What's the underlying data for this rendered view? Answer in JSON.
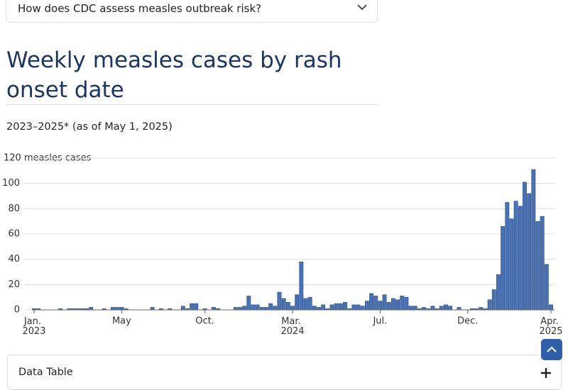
{
  "accordion": {
    "question": "How does CDC assess measles outbreak risk?"
  },
  "chart_data": {
    "type": "bar",
    "title": "Weekly measles cases by rash onset date",
    "subtitle": "2023–2025* (as of May 1, 2025)",
    "categories": [
      "Jan. 2023",
      null,
      null,
      null,
      null,
      null,
      null,
      null,
      null,
      null,
      null,
      null,
      null,
      null,
      null,
      null,
      null,
      null,
      null,
      null,
      "May",
      null,
      null,
      null,
      null,
      null,
      null,
      null,
      null,
      null,
      null,
      null,
      null,
      null,
      null,
      null,
      null,
      null,
      null,
      "Oct.",
      null,
      null,
      null,
      null,
      null,
      null,
      null,
      null,
      null,
      null,
      null,
      null,
      null,
      null,
      null,
      null,
      null,
      null,
      null,
      "Mar. 2024",
      null,
      null,
      null,
      null,
      null,
      null,
      null,
      null,
      null,
      null,
      null,
      null,
      null,
      null,
      null,
      null,
      null,
      null,
      null,
      "Jul.",
      null,
      null,
      null,
      null,
      null,
      null,
      null,
      null,
      null,
      null,
      null,
      null,
      null,
      null,
      null,
      null,
      null,
      null,
      null,
      "Dec.",
      null,
      null,
      null,
      null,
      null,
      null,
      null,
      null,
      null,
      null,
      null,
      null,
      null,
      null,
      null,
      null,
      null,
      null,
      "Apr. 2025"
    ],
    "values": [
      1,
      1,
      0,
      0,
      0,
      0,
      1,
      0,
      1,
      1,
      1,
      1,
      1,
      2,
      0,
      0,
      1,
      0,
      2,
      2,
      2,
      1,
      0,
      0,
      0,
      0,
      0,
      2,
      0,
      1,
      0,
      1,
      0,
      0,
      3,
      1,
      5,
      5,
      0,
      1,
      0,
      2,
      1,
      0,
      0,
      0,
      2,
      2,
      3,
      11,
      4,
      4,
      2,
      2,
      5,
      3,
      14,
      9,
      6,
      3,
      12,
      38,
      9,
      10,
      3,
      2,
      4,
      1,
      4,
      5,
      5,
      6,
      1,
      4,
      4,
      3,
      7,
      13,
      11,
      7,
      12,
      6,
      9,
      8,
      11,
      10,
      3,
      3,
      1,
      2,
      1,
      3,
      1,
      3,
      4,
      3,
      0,
      2,
      0,
      0,
      1,
      1,
      2,
      1,
      8,
      16,
      28,
      66,
      85,
      72,
      86,
      82,
      101,
      92,
      111,
      70,
      74,
      36,
      4
    ],
    "color": "#4a72b2",
    "ylim": [
      0,
      120
    ],
    "yticks": [
      0,
      20,
      40,
      60,
      80,
      100,
      {
        "value": 120,
        "label": "120 measles cases"
      }
    ],
    "grid": true
  },
  "data_table": {
    "label": "Data Table"
  }
}
